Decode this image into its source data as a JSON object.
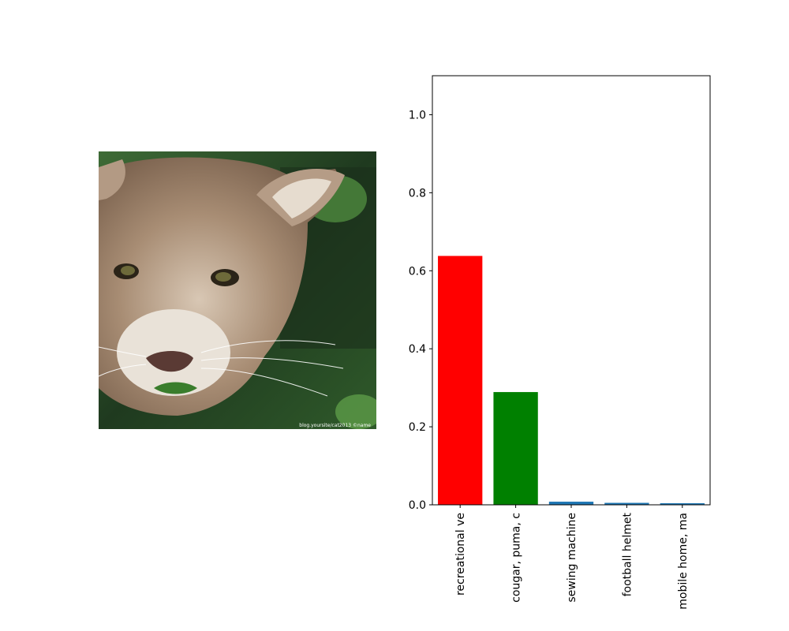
{
  "image_panel": {
    "alt": "cougar",
    "watermark": "blog.yoursite/cat2013 ©name"
  },
  "chart_data": {
    "type": "bar",
    "categories": [
      "recreational ve",
      "cougar, puma, c",
      "sewing machine",
      "football helmet",
      "mobile home, ma"
    ],
    "values": [
      0.638,
      0.289,
      0.008,
      0.005,
      0.004
    ],
    "bar_colors": [
      "#ff0000",
      "#008000",
      "#1f77b4",
      "#1f77b4",
      "#1f77b4"
    ],
    "ylim": [
      0,
      1.1
    ],
    "yticks": [
      0.0,
      0.2,
      0.4,
      0.6,
      0.8,
      1.0
    ],
    "ytick_labels": [
      "0.0",
      "0.2",
      "0.4",
      "0.6",
      "0.8",
      "1.0"
    ],
    "title": "",
    "xlabel": "",
    "ylabel": "",
    "grid": false
  }
}
